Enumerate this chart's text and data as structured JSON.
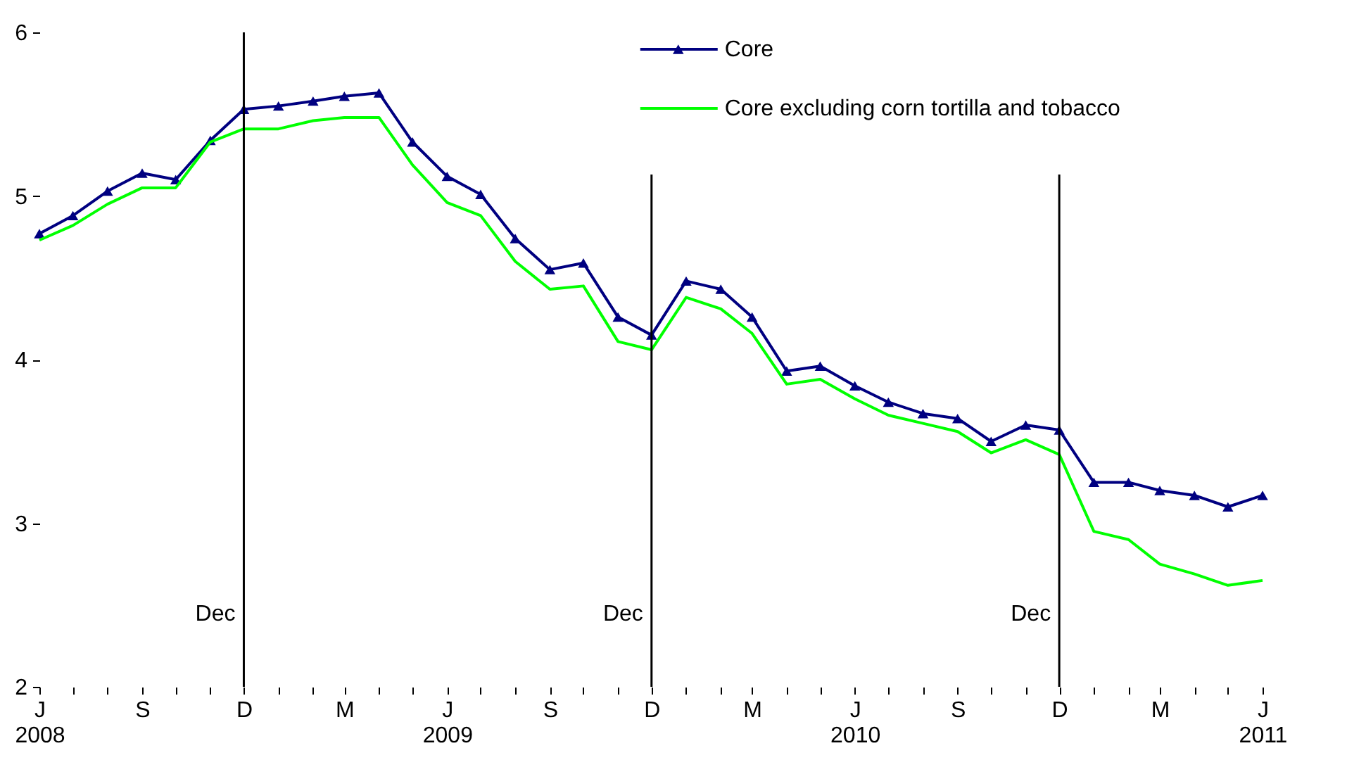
{
  "chart_data": {
    "type": "line",
    "x": [
      "2008-06",
      "2008-07",
      "2008-08",
      "2008-09",
      "2008-10",
      "2008-11",
      "2008-12",
      "2009-01",
      "2009-02",
      "2009-03",
      "2009-04",
      "2009-05",
      "2009-06",
      "2009-07",
      "2009-08",
      "2009-09",
      "2009-10",
      "2009-11",
      "2009-12",
      "2010-01",
      "2010-02",
      "2010-03",
      "2010-04",
      "2010-05",
      "2010-06",
      "2010-07",
      "2010-08",
      "2010-09",
      "2010-10",
      "2010-11",
      "2010-12",
      "2011-01",
      "2011-02",
      "2011-03",
      "2011-04",
      "2011-05",
      "2011-06"
    ],
    "series": [
      {
        "name": "Core",
        "color": "#000080",
        "marker": "triangle",
        "values": [
          4.77,
          4.88,
          5.03,
          5.14,
          5.1,
          5.34,
          5.53,
          5.55,
          5.58,
          5.61,
          5.63,
          5.33,
          5.12,
          5.01,
          4.74,
          4.55,
          4.59,
          4.26,
          4.15,
          4.48,
          4.43,
          4.26,
          3.93,
          3.96,
          3.84,
          3.74,
          3.67,
          3.64,
          3.5,
          3.6,
          3.57,
          3.25,
          3.25,
          3.2,
          3.17,
          3.1,
          3.17
        ]
      },
      {
        "name": "Core excluding corn tortilla and tobacco",
        "color": "#00ff00",
        "marker": "none",
        "values": [
          4.73,
          4.82,
          4.95,
          5.05,
          5.05,
          5.33,
          5.41,
          5.41,
          5.46,
          5.48,
          5.48,
          5.19,
          4.96,
          4.88,
          4.6,
          4.43,
          4.45,
          4.11,
          4.06,
          4.38,
          4.31,
          4.16,
          3.85,
          3.88,
          3.76,
          3.66,
          3.61,
          3.56,
          3.43,
          3.51,
          3.42,
          2.95,
          2.9,
          2.75,
          2.69,
          2.62,
          2.65
        ]
      }
    ],
    "xlim": [
      "2008-06",
      "2011-06"
    ],
    "xticks": [
      {
        "value": "2008-06",
        "label": "J\n2008"
      },
      {
        "value": "2008-07",
        "label": null
      },
      {
        "value": "2008-08",
        "label": null
      },
      {
        "value": "2008-09",
        "label": "S"
      },
      {
        "value": "2008-10",
        "label": null
      },
      {
        "value": "2008-11",
        "label": null
      },
      {
        "value": "2008-12",
        "label": "D"
      },
      {
        "value": "2009-01",
        "label": null
      },
      {
        "value": "2009-02",
        "label": null
      },
      {
        "value": "2009-03",
        "label": "M"
      },
      {
        "value": "2009-04",
        "label": null
      },
      {
        "value": "2009-05",
        "label": null
      },
      {
        "value": "2009-06",
        "label": "J\n2009"
      },
      {
        "value": "2009-07",
        "label": null
      },
      {
        "value": "2009-08",
        "label": null
      },
      {
        "value": "2009-09",
        "label": "S"
      },
      {
        "value": "2009-10",
        "label": null
      },
      {
        "value": "2009-11",
        "label": null
      },
      {
        "value": "2009-12",
        "label": "D"
      },
      {
        "value": "2010-01",
        "label": null
      },
      {
        "value": "2010-02",
        "label": null
      },
      {
        "value": "2010-03",
        "label": "M"
      },
      {
        "value": "2010-04",
        "label": null
      },
      {
        "value": "2010-05",
        "label": null
      },
      {
        "value": "2010-06",
        "label": "J\n2010"
      },
      {
        "value": "2010-07",
        "label": null
      },
      {
        "value": "2010-08",
        "label": null
      },
      {
        "value": "2010-09",
        "label": "S"
      },
      {
        "value": "2010-10",
        "label": null
      },
      {
        "value": "2010-11",
        "label": null
      },
      {
        "value": "2010-12",
        "label": "D"
      },
      {
        "value": "2011-01",
        "label": null
      },
      {
        "value": "2011-02",
        "label": null
      },
      {
        "value": "2011-03",
        "label": "M"
      },
      {
        "value": "2011-04",
        "label": null
      },
      {
        "value": "2011-05",
        "label": null
      },
      {
        "value": "2011-06",
        "label": "J\n2011"
      }
    ],
    "ylim": [
      2,
      6
    ],
    "yticks": [
      2,
      3,
      4,
      5,
      6
    ],
    "ref_lines": [
      {
        "axis": "x",
        "value": "2008-12",
        "label": "Dec",
        "color": "#000000"
      },
      {
        "axis": "x",
        "value": "2009-12",
        "label": "Dec",
        "color": "#000000"
      },
      {
        "axis": "x",
        "value": "2010-12",
        "label": "Dec",
        "color": "#000000"
      }
    ],
    "grid": false,
    "legend": "top right",
    "line_style": "solid"
  }
}
